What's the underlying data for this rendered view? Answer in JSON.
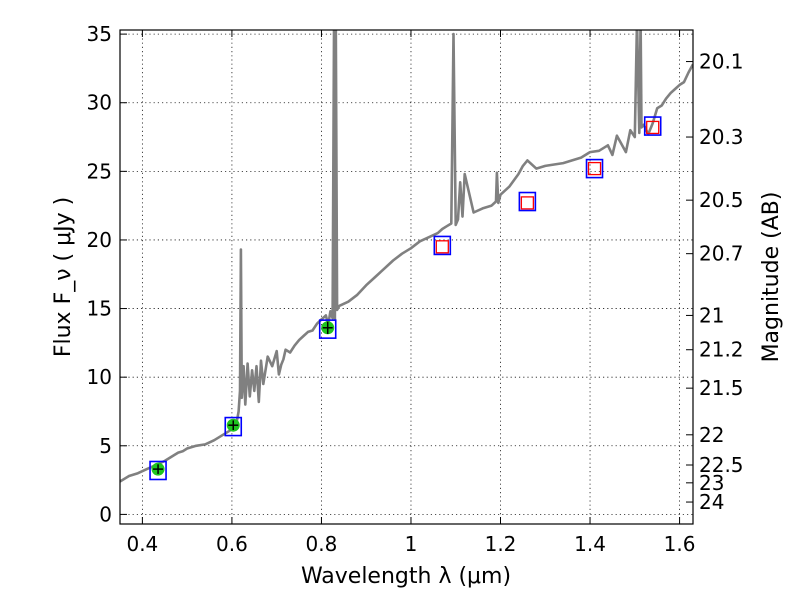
{
  "chart_data": {
    "type": "line",
    "xlabel": "Wavelength  λ (μm)",
    "ylabel": "Flux  F_ν  ( μJy )",
    "ylabel_right": "Magnitude (AB)",
    "xlim": [
      0.35,
      1.63
    ],
    "ylim": [
      -0.7,
      35.3
    ],
    "x_ticks": [
      0.4,
      0.6,
      0.8,
      1.0,
      1.2,
      1.4,
      1.6
    ],
    "x_tick_labels": [
      "0.4",
      "0.6",
      "0.8",
      "1",
      "1.2",
      "1.4",
      "1.6"
    ],
    "y_ticks": [
      0,
      5,
      10,
      15,
      20,
      25,
      30,
      35
    ],
    "y_tick_labels": [
      "0",
      "5",
      "10",
      "15",
      "20",
      "25",
      "30",
      "35"
    ],
    "right_ticks": [
      {
        "label": "20.1",
        "flux": 33.0
      },
      {
        "label": "20.3",
        "flux": 27.5
      },
      {
        "label": "20.5",
        "flux": 22.9
      },
      {
        "label": "20.7",
        "flux": 19.0
      },
      {
        "label": "21",
        "flux": 14.5
      },
      {
        "label": "21.2",
        "flux": 12.0
      },
      {
        "label": "21.5",
        "flux": 9.2
      },
      {
        "label": "22",
        "flux": 5.8
      },
      {
        "label": "22.5",
        "flux": 3.6
      },
      {
        "label": "23",
        "flux": 2.3
      },
      {
        "label": "24",
        "flux": 0.9
      }
    ],
    "grid": true,
    "series": [
      {
        "name": "model spectrum",
        "color": "#808080",
        "x": [
          0.35,
          0.37,
          0.39,
          0.41,
          0.43,
          0.45,
          0.47,
          0.48,
          0.49,
          0.5,
          0.52,
          0.54,
          0.56,
          0.58,
          0.6,
          0.61,
          0.615,
          0.618,
          0.62,
          0.622,
          0.626,
          0.63,
          0.635,
          0.64,
          0.645,
          0.65,
          0.655,
          0.66,
          0.665,
          0.67,
          0.68,
          0.69,
          0.7,
          0.705,
          0.71,
          0.715,
          0.72,
          0.73,
          0.74,
          0.75,
          0.76,
          0.77,
          0.78,
          0.79,
          0.8,
          0.81,
          0.815,
          0.82,
          0.825,
          0.828,
          0.83,
          0.832,
          0.835,
          0.84,
          0.86,
          0.88,
          0.9,
          0.92,
          0.94,
          0.96,
          0.98,
          1.0,
          1.02,
          1.04,
          1.06,
          1.07,
          1.08,
          1.09,
          1.095,
          1.1,
          1.105,
          1.11,
          1.115,
          1.12,
          1.14,
          1.16,
          1.18,
          1.19,
          1.192,
          1.195,
          1.2,
          1.22,
          1.24,
          1.25,
          1.26,
          1.28,
          1.3,
          1.32,
          1.34,
          1.36,
          1.38,
          1.4,
          1.42,
          1.44,
          1.45,
          1.46,
          1.47,
          1.48,
          1.49,
          1.5,
          1.505,
          1.51,
          1.513,
          1.515,
          1.52,
          1.53,
          1.54,
          1.55,
          1.56,
          1.57,
          1.58,
          1.59,
          1.6,
          1.61,
          1.62,
          1.63
        ],
        "y": [
          2.4,
          2.8,
          3.0,
          3.3,
          3.6,
          3.9,
          4.3,
          4.5,
          4.6,
          4.8,
          5.0,
          5.1,
          5.4,
          5.8,
          6.2,
          6.6,
          7.5,
          9.0,
          19.3,
          8.5,
          10.8,
          8.0,
          11.0,
          8.6,
          10.5,
          9.0,
          10.8,
          8.2,
          11.2,
          9.5,
          11.5,
          10.8,
          11.9,
          10.2,
          10.9,
          11.3,
          12.0,
          11.8,
          12.3,
          12.7,
          13.0,
          13.3,
          13.4,
          13.9,
          14.2,
          14.5,
          13.8,
          14.8,
          14.3,
          35.3,
          14.2,
          36.0,
          14.9,
          15.2,
          15.5,
          16.0,
          16.7,
          17.3,
          17.9,
          18.5,
          19.0,
          19.4,
          19.9,
          20.2,
          20.5,
          20.8,
          21.0,
          21.2,
          35.0,
          21.1,
          21.5,
          24.2,
          21.7,
          24.8,
          22.0,
          22.3,
          22.5,
          22.8,
          24.9,
          22.7,
          23.3,
          23.9,
          24.8,
          25.4,
          25.8,
          25.2,
          25.4,
          25.5,
          25.6,
          25.8,
          26.0,
          26.4,
          26.5,
          26.9,
          26.2,
          27.6,
          27.0,
          26.4,
          28.0,
          27.5,
          36.0,
          27.8,
          36.0,
          28.2,
          28.4,
          27.7,
          28.5,
          29.6,
          29.8,
          30.3,
          30.7,
          31.0,
          31.3,
          31.5,
          32.2,
          32.8
        ]
      },
      {
        "name": "measured photometry",
        "color": "#1fc41f",
        "x": [
          0.435,
          0.603,
          0.814
        ],
        "values": [
          3.3,
          6.5,
          13.6
        ],
        "errors": [
          0.35,
          0.35,
          0.45
        ]
      },
      {
        "name": "model photometry",
        "color": "#0000ff",
        "x": [
          0.435,
          0.603,
          0.814,
          1.07,
          1.26,
          1.41,
          1.54
        ],
        "values": [
          3.2,
          6.4,
          13.5,
          19.6,
          22.8,
          25.2,
          28.3
        ]
      },
      {
        "name": "predicted photometry",
        "color": "#ff0000",
        "x": [
          1.07,
          1.26,
          1.41,
          1.54
        ],
        "values": [
          19.5,
          22.7,
          25.2,
          28.2
        ]
      }
    ]
  }
}
